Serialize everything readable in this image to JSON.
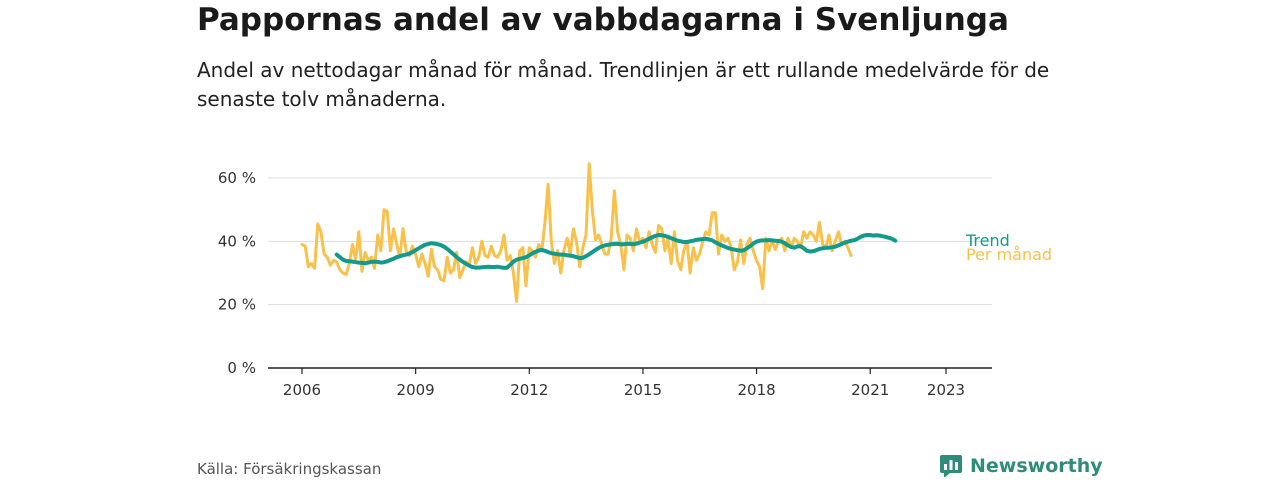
{
  "header": {
    "title": "Pappornas andel av vabbdagarna i Svenljunga",
    "subtitle": "Andel av nettodagar månad för månad. Trendlinjen är ett rullande medelvärde för de senaste tolv månaderna."
  },
  "footer": {
    "source": "Källa: Försäkringskassan",
    "brand": "Newsworthy"
  },
  "colors": {
    "monthly": "#f7c14b",
    "trend": "#139a8b",
    "grid": "#dddddd",
    "axis": "#222222",
    "brand": "#2d8c7a"
  },
  "chart_data": {
    "type": "line",
    "title": "Pappornas andel av vabbdagarna i Svenljunga",
    "xlabel": "",
    "ylabel": "",
    "x_ticks": [
      "2006",
      "2009",
      "2012",
      "2015",
      "2018",
      "2021",
      "2023"
    ],
    "y_ticks": [
      "0 %",
      "20 %",
      "40 %",
      "60 %"
    ],
    "xlim": [
      2005.6,
      2024.1
    ],
    "ylim": [
      0,
      65
    ],
    "grid": "horizontal",
    "legend": "inline-right",
    "series": [
      {
        "name": "Per månad",
        "x_start": 2006.0,
        "step": 0.0833,
        "values": [
          39,
          38.5,
          32,
          33,
          31.5,
          45.5,
          43,
          36,
          35,
          32.5,
          34,
          33.5,
          31,
          30,
          29.5,
          33,
          39,
          34,
          43,
          30.5,
          36.5,
          34,
          35,
          31.5,
          42,
          37,
          50,
          49.5,
          37,
          44,
          39,
          35,
          44,
          37,
          35.5,
          38.5,
          36,
          32,
          36,
          33,
          29,
          37.5,
          32,
          31,
          28,
          27.5,
          35,
          30,
          31,
          36.5,
          28.5,
          31,
          33.5,
          32.5,
          38,
          33,
          35,
          40,
          35.5,
          35,
          38.5,
          35.5,
          35,
          37,
          42,
          34,
          35.5,
          30,
          21,
          37,
          38,
          26,
          38,
          37,
          35,
          39,
          37,
          46,
          58,
          40,
          33,
          37,
          30,
          37,
          41,
          36,
          44,
          40,
          32,
          38,
          42,
          64.5,
          50,
          40.5,
          42,
          39,
          36,
          36,
          41,
          56,
          43,
          39,
          31,
          42,
          41,
          37,
          44,
          40,
          41,
          38,
          43,
          39,
          36.5,
          45,
          44,
          37,
          41,
          33,
          43,
          34,
          31,
          37,
          40,
          30,
          38,
          34,
          36,
          40,
          43,
          42,
          49,
          49,
          36,
          42,
          40,
          41,
          38,
          31,
          33.5,
          40.5,
          33,
          39,
          41,
          37,
          34,
          32,
          25,
          41,
          37,
          40,
          37.5,
          40,
          41,
          37,
          41,
          38,
          41,
          40,
          38,
          43,
          41,
          43,
          42,
          40,
          46,
          39,
          38,
          42,
          37,
          40,
          43,
          39,
          40,
          38,
          35.5
        ]
      },
      {
        "name": "Trend",
        "x_start": 2006.917,
        "step": 0.0833,
        "values": [
          35.8,
          35,
          34.2,
          33.8,
          33.7,
          33.6,
          33.4,
          33.3,
          33.2,
          33.1,
          33.3,
          33.5,
          33.6,
          33.5,
          33.3,
          33.4,
          33.7,
          34.1,
          34.5,
          35,
          35.3,
          35.6,
          35.8,
          36.1,
          36.6,
          37.2,
          37.8,
          38.4,
          38.9,
          39.2,
          39.4,
          39.3,
          39.1,
          38.8,
          38.3,
          37.6,
          36.8,
          35.9,
          35,
          34.2,
          33.5,
          32.9,
          32.3,
          31.9,
          31.7,
          31.7,
          31.8,
          31.9,
          32,
          31.9,
          31.9,
          32,
          31.8,
          31.6,
          31.7,
          32.6,
          33.6,
          34.2,
          34.5,
          34.7,
          35,
          35.6,
          36.2,
          36.7,
          37.1,
          37.3,
          37,
          36.6,
          36.3,
          36.1,
          35.9,
          35.8,
          35.8,
          35.6,
          35.5,
          35.3,
          35,
          34.7,
          34.8,
          35.3,
          35.9,
          36.6,
          37.3,
          37.9,
          38.4,
          38.7,
          38.9,
          39.1,
          39.2,
          39.2,
          39.1,
          39.1,
          39.2,
          39.2,
          39.1,
          39.3,
          39.6,
          39.9,
          40.3,
          40.8,
          41.3,
          41.7,
          42,
          41.9,
          41.7,
          41.4,
          41,
          40.6,
          40.2,
          40,
          39.8,
          39.8,
          40,
          40.2,
          40.5,
          40.6,
          40.7,
          40.8,
          40.6,
          40.3,
          39.7,
          39.2,
          38.7,
          38.3,
          37.9,
          37.6,
          37.4,
          37.2,
          37,
          37.2,
          37.8,
          38.5,
          39.3,
          39.9,
          40.2,
          40.3,
          40.3,
          40.4,
          40.3,
          40.2,
          40.1,
          39.9,
          39.4,
          38.7,
          38.2,
          38,
          38.4,
          38.5,
          37.8,
          37,
          36.8,
          36.9,
          37.2,
          37.6,
          37.8,
          38,
          38,
          38.1,
          38.3,
          38.7,
          39.2,
          39.6,
          39.9,
          40.2,
          40.4,
          40.8,
          41.4,
          41.8,
          42,
          42,
          41.8,
          41.9,
          41.8,
          41.6,
          41.4,
          41.1,
          40.8,
          40.2
        ]
      }
    ]
  }
}
